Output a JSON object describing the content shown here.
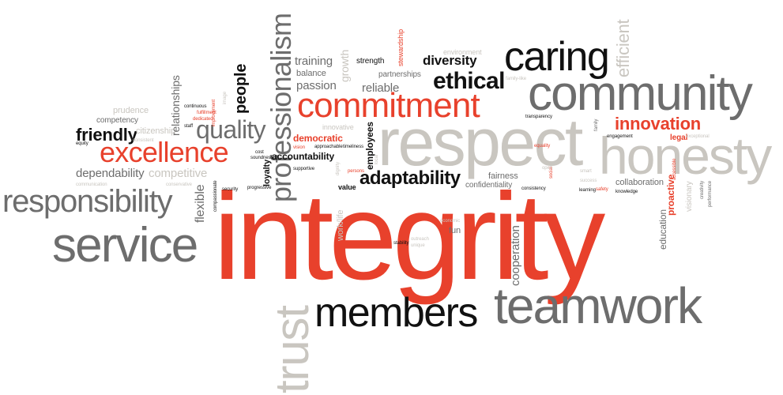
{
  "words": {
    "integrity": "integrity",
    "respect": "respect",
    "community": "community",
    "commitment": "commitment",
    "teamwork": "teamwork",
    "members": "members",
    "service": "service",
    "responsibility": "responsibility",
    "honesty": "honesty",
    "caring": "caring",
    "excellence": "excellence",
    "professionalism": "professionalism",
    "trust": "trust",
    "quality": "quality",
    "ethical": "ethical",
    "innovation": "innovation",
    "adaptability": "adaptability",
    "friendly": "friendly",
    "people": "people",
    "diversity": "diversity",
    "efficient": "efficient",
    "dependability": "dependability",
    "competitive": "competitive",
    "competency": "competency",
    "prudence": "prudence",
    "citizenship": "citizenship",
    "relationships": "relationships",
    "flexible": "flexible",
    "training": "training",
    "balance": "balance",
    "passion": "passion",
    "growth": "growth",
    "strength": "strength",
    "stewardship": "stewardship",
    "partnerships": "partnerships",
    "environment": "environment",
    "reliable": "reliable",
    "democratic": "democratic",
    "accountability": "accountability",
    "innovative": "innovative",
    "employees": "employees",
    "loyalty": "loyalty",
    "value": "value",
    "fairness": "fairness",
    "confidentiality": "confidentiality",
    "collaboration": "collaboration",
    "legal": "legal",
    "proactive": "proactive",
    "education": "education",
    "visionary": "visionary",
    "cooperation": "cooperation",
    "fun": "fun",
    "work_life": "work/life",
    "learning": "learning",
    "safety": "safety",
    "knowledge": "knowledge",
    "equality": "equality",
    "consistency": "consistency",
    "transparency": "transparency",
    "engagement": "engagement",
    "family": "family",
    "exceptional": "exceptional",
    "creativity": "creativity",
    "performance": "performance",
    "accessible": "accessible",
    "smart": "smart",
    "success": "success",
    "social": "social",
    "improvement": "improvement",
    "fulfillment": "fulfillment",
    "dedicated": "dedicated",
    "continuous": "continuous",
    "image": "image",
    "staff": "staff",
    "equity": "equity",
    "consistent": "consistent",
    "communication": "communication",
    "conservative": "conservative",
    "security": "security",
    "compassionate": "compassionate",
    "progressive": "progressive",
    "cost": "cost",
    "soundness": "soundness",
    "vision": "vision",
    "approachable": "approachable",
    "timeliness": "timeliness",
    "supportive": "supportive",
    "persons": "persons",
    "dignity": "dignity",
    "local": "local",
    "outreach": "outreach",
    "unique": "unique",
    "stability": "stability",
    "economic": "economic",
    "open": "open",
    "family_like": "family-like"
  },
  "colors": {
    "red": "#e8412c",
    "black": "#111111",
    "gray": "#6d6d6d",
    "light_gray": "#c9c6c0"
  }
}
